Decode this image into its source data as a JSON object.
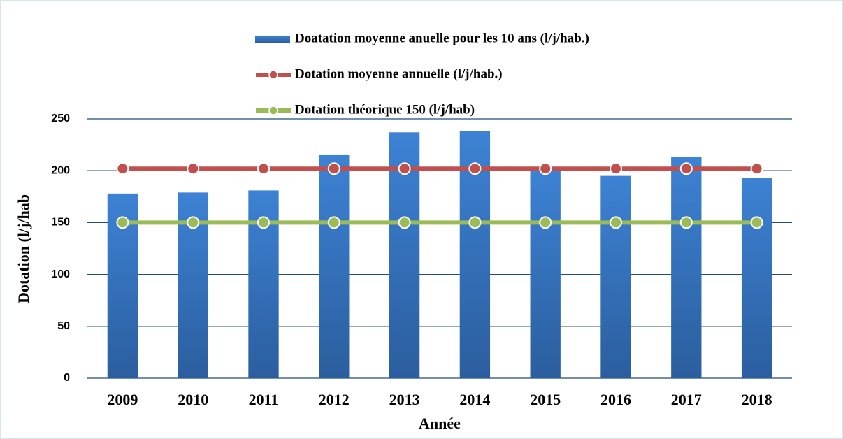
{
  "chart_data": {
    "type": "bar",
    "categories": [
      "2009",
      "2010",
      "2011",
      "2012",
      "2013",
      "2014",
      "2015",
      "2016",
      "2017",
      "2018"
    ],
    "series": [
      {
        "name": "Doatation moyenne anuelle pour les 10 ans (l/j/hab.)",
        "type": "bar",
        "color": "#3a78c4",
        "values": [
          178,
          179,
          181,
          215,
          237,
          238,
          201,
          195,
          213,
          193
        ]
      },
      {
        "name": "Dotation moyenne annuelle (l/j/hab.)",
        "type": "line",
        "color": "#c0504d",
        "values": [
          202,
          202,
          202,
          202,
          202,
          202,
          202,
          202,
          202,
          202
        ]
      },
      {
        "name": "Dotation théorique 150 (l/j/hab)",
        "type": "line",
        "color": "#9bbb59",
        "values": [
          150,
          150,
          150,
          150,
          150,
          150,
          150,
          150,
          150,
          150
        ]
      }
    ],
    "x_label": "Année",
    "y_label": "Dotation (l/j/hab",
    "ylim": [
      0,
      250
    ],
    "yticks": [
      0,
      50,
      100,
      150,
      200,
      250
    ],
    "grid": true,
    "legend": "top"
  }
}
